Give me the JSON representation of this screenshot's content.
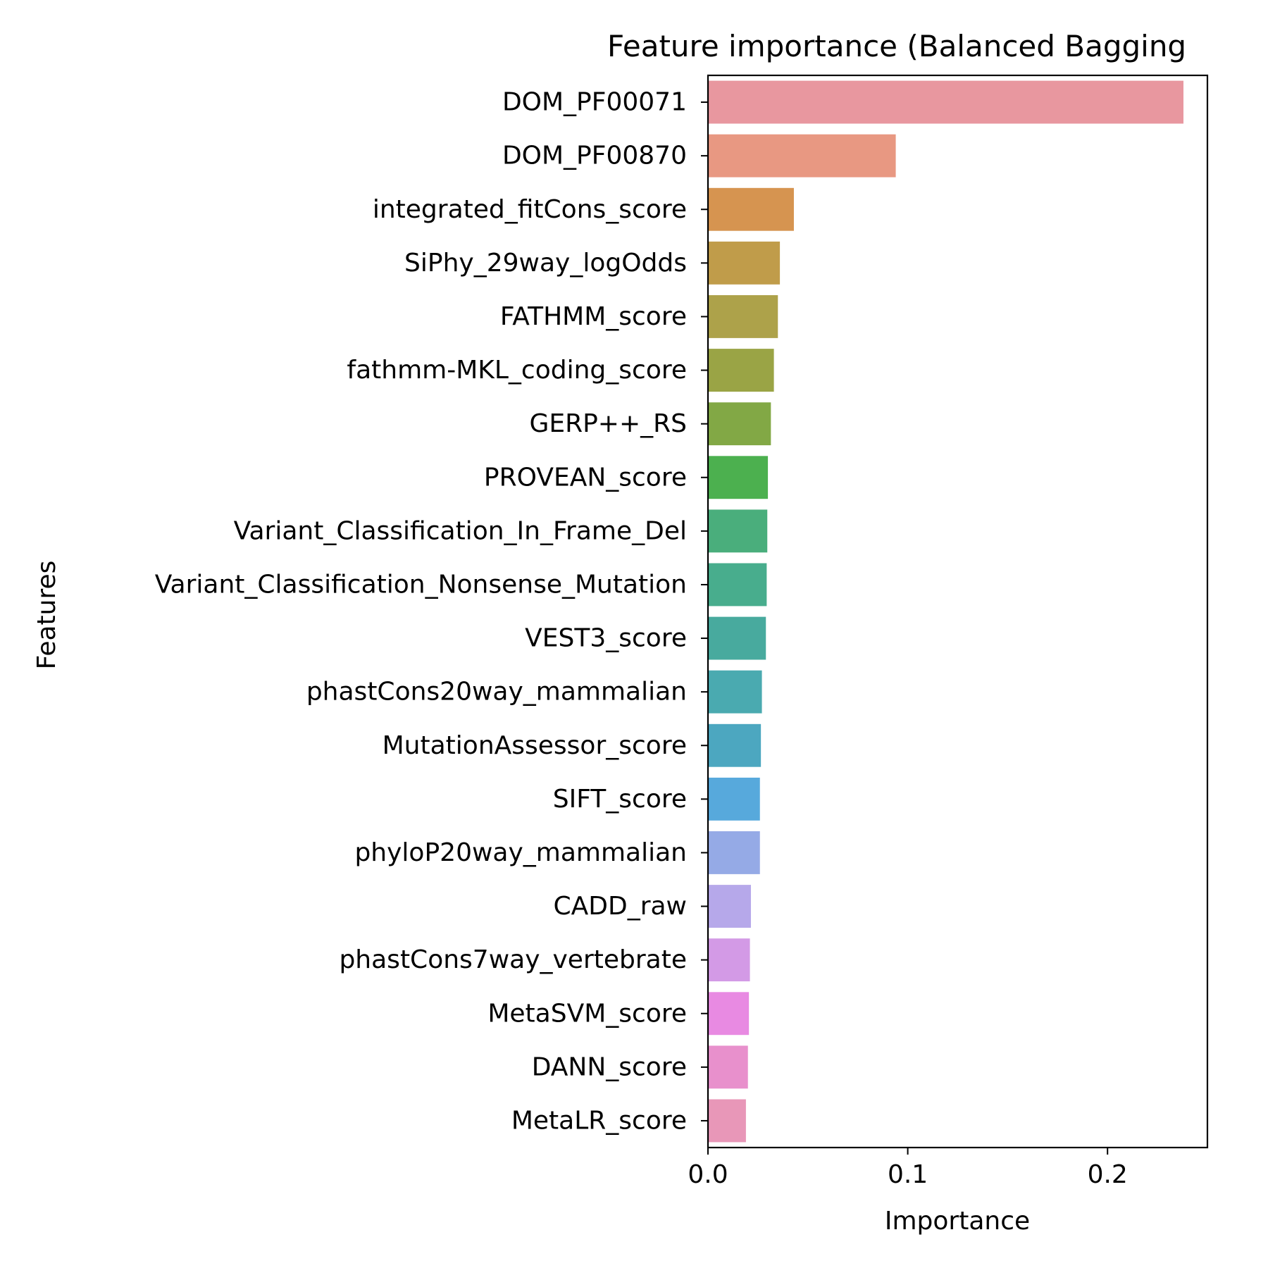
{
  "chart_data": {
    "type": "bar",
    "orientation": "horizontal",
    "title": "Feature importance (Balanced Bagging",
    "xlabel": "Importance",
    "ylabel": "Features",
    "xlim": [
      0,
      0.25
    ],
    "xticks": [
      0.0,
      0.1,
      0.2
    ],
    "xtick_labels": [
      "0.0",
      "0.1",
      "0.2"
    ],
    "grid": false,
    "categories": [
      "DOM_PF00071",
      "DOM_PF00870",
      "integrated_fitCons_score",
      "SiPhy_29way_logOdds",
      "FATHMM_score",
      "fathmm-MKL_coding_score",
      "GERP++_RS",
      "PROVEAN_score",
      "Variant_Classification_In_Frame_Del",
      "Variant_Classification_Nonsense_Mutation",
      "VEST3_score",
      "phastCons20way_mammalian",
      "MutationAssessor_score",
      "SIFT_score",
      "phyloP20way_mammalian",
      "CADD_raw",
      "phastCons7way_vertebrate",
      "MetaSVM_score",
      "DANN_score",
      "MetaLR_score"
    ],
    "values": [
      0.238,
      0.094,
      0.043,
      0.036,
      0.035,
      0.033,
      0.0315,
      0.03,
      0.0297,
      0.0294,
      0.029,
      0.027,
      0.0265,
      0.026,
      0.026,
      0.0215,
      0.021,
      0.0205,
      0.02,
      0.019
    ],
    "colors": [
      "#e8979f",
      "#e89882",
      "#d69450",
      "#c09c4a",
      "#ada24a",
      "#9aa445",
      "#82a845",
      "#4cb04f",
      "#4aae7c",
      "#48ad8d",
      "#48aa9e",
      "#4aaab0",
      "#4ca7c0",
      "#57a9dc",
      "#95aae6",
      "#b6a8ea",
      "#d39ae6",
      "#e88ae2",
      "#e890cc",
      "#e897b8"
    ]
  }
}
